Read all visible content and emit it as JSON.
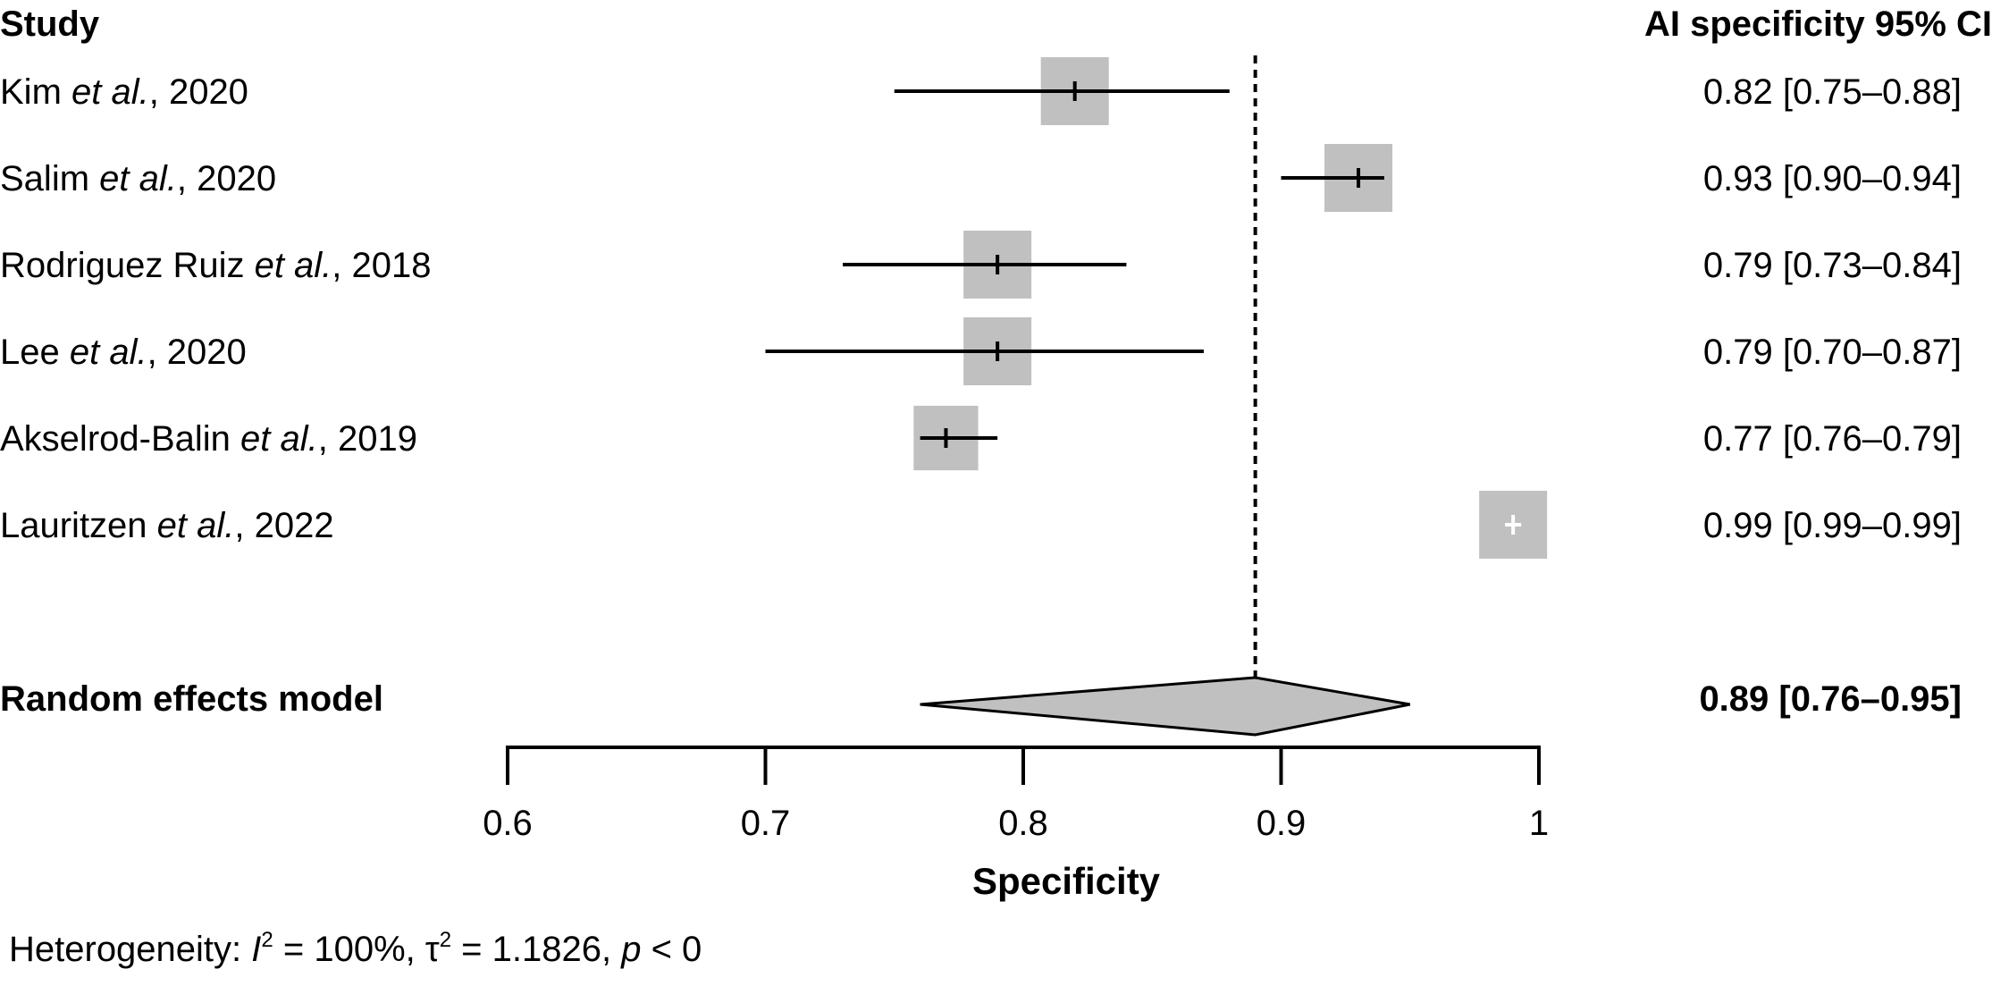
{
  "chart_data": {
    "type": "forest",
    "header": {
      "study": "Study",
      "estimate": "AI specificity 95% CI"
    },
    "studies": [
      {
        "author": "Kim",
        "etal": "et al.",
        "year": ", 2020",
        "estimate": 0.82,
        "lower": 0.75,
        "upper": 0.88,
        "ci_text": "0.82 [0.75–0.88]",
        "weight": 1.0
      },
      {
        "author": "Salim",
        "etal": "et al.",
        "year": ", 2020",
        "estimate": 0.93,
        "lower": 0.9,
        "upper": 0.94,
        "ci_text": "0.93 [0.90–0.94]",
        "weight": 1.0
      },
      {
        "author": "Rodriguez Ruiz",
        "etal": "et al.",
        "year": ", 2018",
        "estimate": 0.79,
        "lower": 0.73,
        "upper": 0.84,
        "ci_text": "0.79 [0.73–0.84]",
        "weight": 1.0
      },
      {
        "author": "Lee",
        "etal": "et al.",
        "year": ", 2020",
        "estimate": 0.79,
        "lower": 0.7,
        "upper": 0.87,
        "ci_text": "0.79 [0.70–0.87]",
        "weight": 1.0
      },
      {
        "author": "Akselrod-Balin",
        "etal": "et al.",
        "year": ", 2019",
        "estimate": 0.77,
        "lower": 0.76,
        "upper": 0.79,
        "ci_text": "0.77 [0.76–0.79]",
        "weight": 0.95
      },
      {
        "author": "Lauritzen",
        "etal": "et al.",
        "year": ", 2022",
        "estimate": 0.99,
        "lower": 0.99,
        "upper": 0.99,
        "ci_text": "0.99 [0.99–0.99]",
        "weight": 1.0
      }
    ],
    "pooled": {
      "label": "Random effects model",
      "estimate": 0.89,
      "lower": 0.76,
      "upper": 0.95,
      "ci_text": "0.89 [0.76–0.95]"
    },
    "reference_line": 0.89,
    "xlim": [
      0.6,
      1.0
    ],
    "xticks": [
      0.6,
      0.7,
      0.8,
      0.9,
      1.0
    ],
    "xtick_labels": [
      "0.6",
      "0.7",
      "0.8",
      "0.9",
      "1"
    ],
    "xlabel": "Specificity",
    "heterogeneity": {
      "prefix": "Heterogeneity: ",
      "i2_symbol": "I",
      "i2_sup": "2",
      "i2_value": " = 100%, ",
      "tau_symbol": "τ",
      "tau_sup": "2",
      "tau_value": " = 1.1826, ",
      "p_symbol": "p",
      "p_value": " < 0"
    },
    "colors": {
      "box": "#c0c0c0",
      "line": "#000000",
      "diamond": "#c0c0c0",
      "marker_inside_light": "#ffffff"
    }
  }
}
